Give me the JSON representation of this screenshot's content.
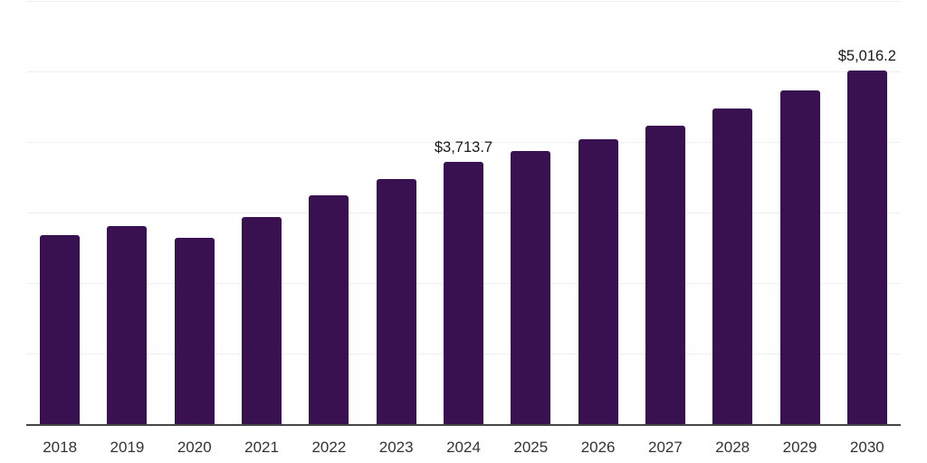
{
  "chart_data": {
    "type": "bar",
    "title": "",
    "xlabel": "",
    "ylabel": "",
    "categories": [
      "2018",
      "2019",
      "2020",
      "2021",
      "2022",
      "2023",
      "2024",
      "2025",
      "2026",
      "2027",
      "2028",
      "2029",
      "2030"
    ],
    "values": [
      2680,
      2810,
      2640,
      2935,
      3240,
      3475,
      3713.7,
      3870,
      4040,
      4230,
      4470,
      4730,
      5016.2
    ],
    "point_labels": [
      "",
      "",
      "",
      "",
      "",
      "",
      "$3,713.7",
      "",
      "",
      "",
      "",
      "",
      "$5,016.2"
    ],
    "ylim": [
      0,
      6000
    ],
    "gridline_step": 1000,
    "grid": true,
    "legend": false,
    "colors": {
      "bar": "#3a1150",
      "axis_line": "#474747",
      "gridline": "#efefef",
      "tick_label": "#333333",
      "data_label": "#1a1a1a",
      "background": "#ffffff"
    }
  }
}
